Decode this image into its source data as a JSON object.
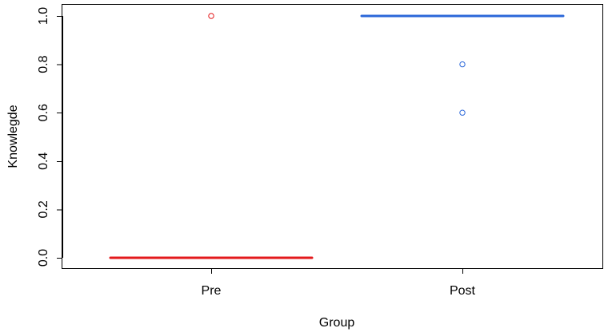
{
  "chart_data": {
    "type": "boxplot",
    "title": "",
    "xlabel": "Group",
    "ylabel": "Knowlegde",
    "ylim": [
      0,
      1
    ],
    "categories": [
      "Pre",
      "Post"
    ],
    "yticks": [
      "0.0",
      "0.2",
      "0.4",
      "0.6",
      "0.8",
      "1.0"
    ],
    "series": [
      {
        "category": "Pre",
        "color": "#e31a1c",
        "median": 0.0,
        "q1": 0.0,
        "q3": 0.0,
        "whisker_low": 0.0,
        "whisker_high": 0.0,
        "outliers": [
          1.0
        ]
      },
      {
        "category": "Post",
        "color": "#2b67d9",
        "median": 1.0,
        "q1": 1.0,
        "q3": 1.0,
        "whisker_low": 1.0,
        "whisker_high": 1.0,
        "outliers": [
          0.8,
          0.6
        ]
      }
    ],
    "grid": false,
    "legend": "none"
  }
}
